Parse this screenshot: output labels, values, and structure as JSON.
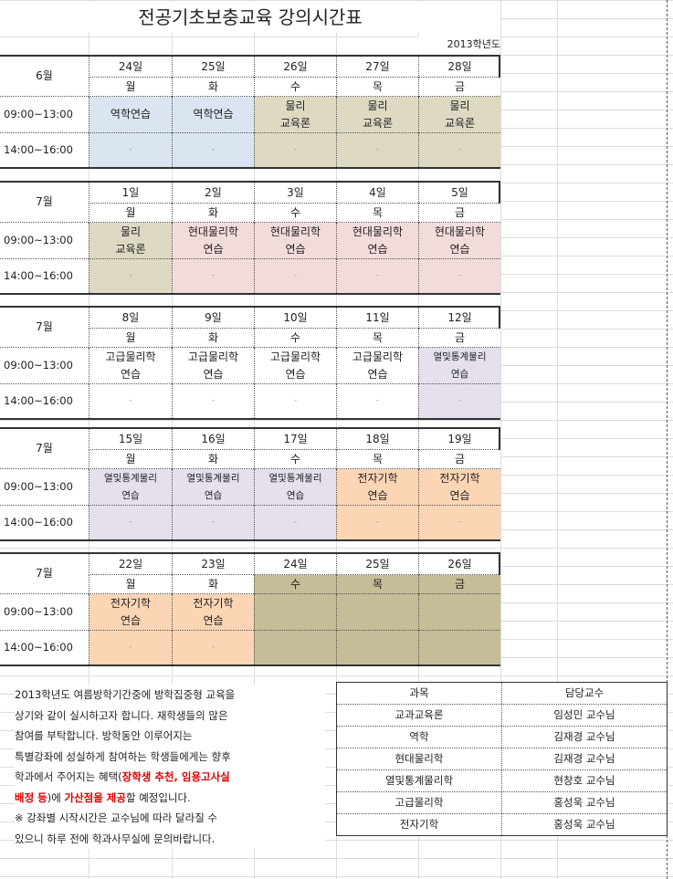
{
  "title": "전공기초보충교육 강의시간표",
  "year": "2013학년도",
  "time_slots": [
    "09:00~13:00",
    "14:00~16:00"
  ],
  "colors": {
    "blue": "#dbe5f1",
    "khaki": "#ddd9c3",
    "pink": "#f2dcdb",
    "lavender": "#e5e0ec",
    "peach": "#fcd5b4",
    "olive": "#c4bd97",
    "white": "#ffffff"
  },
  "blocks": [
    {
      "month": "6월",
      "days": [
        {
          "date": "24일",
          "dow": "월",
          "am": "역학연습",
          "pm": "-",
          "color": "blue"
        },
        {
          "date": "25일",
          "dow": "화",
          "am": "역학연습",
          "pm": "-",
          "color": "blue"
        },
        {
          "date": "26일",
          "dow": "수",
          "am": "물리\n교육론",
          "pm": "-",
          "color": "khaki"
        },
        {
          "date": "27일",
          "dow": "목",
          "am": "물리\n교육론",
          "pm": "-",
          "color": "khaki"
        },
        {
          "date": "28일",
          "dow": "금",
          "am": "물리\n교육론",
          "pm": "-",
          "color": "khaki"
        }
      ]
    },
    {
      "month": "7월",
      "days": [
        {
          "date": "1일",
          "dow": "월",
          "am": "물리\n교육론",
          "pm": "-",
          "color": "khaki"
        },
        {
          "date": "2일",
          "dow": "화",
          "am": "현대물리학\n연습",
          "pm": "-",
          "color": "pink"
        },
        {
          "date": "3일",
          "dow": "수",
          "am": "현대물리학\n연습",
          "pm": "-",
          "color": "pink"
        },
        {
          "date": "4일",
          "dow": "목",
          "am": "현대물리학\n연습",
          "pm": "-",
          "color": "pink"
        },
        {
          "date": "5일",
          "dow": "금",
          "am": "현대물리학\n연습",
          "pm": "-",
          "color": "pink"
        }
      ]
    },
    {
      "month": "7월",
      "days": [
        {
          "date": "8일",
          "dow": "월",
          "am": "고급물리학\n연습",
          "pm": "-",
          "color": "white"
        },
        {
          "date": "9일",
          "dow": "화",
          "am": "고급물리학\n연습",
          "pm": "-",
          "color": "white"
        },
        {
          "date": "10일",
          "dow": "수",
          "am": "고급물리학\n연습",
          "pm": "-",
          "color": "white"
        },
        {
          "date": "11일",
          "dow": "목",
          "am": "고급물리학\n연습",
          "pm": "-",
          "color": "white"
        },
        {
          "date": "12일",
          "dow": "금",
          "am": "열및통계물리\n연습",
          "pm": "-",
          "color": "lavender"
        }
      ]
    },
    {
      "month": "7월",
      "days": [
        {
          "date": "15일",
          "dow": "월",
          "am": "열및통계물리\n연습",
          "pm": "-",
          "color": "lavender"
        },
        {
          "date": "16일",
          "dow": "화",
          "am": "열및통계물리\n연습",
          "pm": "-",
          "color": "lavender"
        },
        {
          "date": "17일",
          "dow": "수",
          "am": "열및통계물리\n연습",
          "pm": "-",
          "color": "lavender"
        },
        {
          "date": "18일",
          "dow": "목",
          "am": "전자기학\n연습",
          "pm": "-",
          "color": "peach"
        },
        {
          "date": "19일",
          "dow": "금",
          "am": "전자기학\n연습",
          "pm": "-",
          "color": "peach"
        }
      ]
    },
    {
      "month": "7월",
      "days": [
        {
          "date": "22일",
          "dow": "월",
          "am": "전자기학\n연습",
          "pm": "-",
          "color": "peach"
        },
        {
          "date": "23일",
          "dow": "화",
          "am": "전자기학\n연습",
          "pm": "-",
          "color": "peach"
        },
        {
          "date": "24일",
          "dow": "수",
          "am": "",
          "pm": "",
          "color": "olive",
          "dow_shaded": true
        },
        {
          "date": "25일",
          "dow": "목",
          "am": "",
          "pm": "",
          "color": "olive",
          "dow_shaded": true
        },
        {
          "date": "26일",
          "dow": "금",
          "am": "",
          "pm": "",
          "color": "olive",
          "dow_shaded": true
        }
      ]
    }
  ],
  "notes": [
    [
      {
        "t": "2013학년도 여름방학기간중에 방학집중형 교육을"
      }
    ],
    [
      {
        "t": "상기와 같이 실시하고자 합니다. 재학생들의 많은"
      }
    ],
    [
      {
        "t": "참여를 부탁합니다. 방학동안 이루어지는"
      }
    ],
    [
      {
        "t": "특별강좌에 성실하게 참여하는 학생들에게는 향후"
      }
    ],
    [
      {
        "t": "학과에서 주어지는 혜택("
      },
      {
        "t": "장학생 추천, 임용고사실",
        "red": true
      }
    ],
    [
      {
        "t": "배정 등",
        "red": true
      },
      {
        "t": ")에 "
      },
      {
        "t": "가산점을 제공",
        "red": true
      },
      {
        "t": "할 예정입니다."
      }
    ],
    [
      {
        "t": "※ 강좌별 시작시간은 교수님에 따라 달라질 수"
      }
    ],
    [
      {
        "t": "있으니 하루 전에 학과사무실에 문의바랍니다."
      }
    ]
  ],
  "professors": {
    "headers": [
      "과목",
      "담당교수"
    ],
    "rows": [
      [
        "교과교육론",
        "임성민 교수님"
      ],
      [
        "역학",
        "김재경 교수님"
      ],
      [
        "현대물리학",
        "김재경 교수님"
      ],
      [
        "열및통계물리학",
        "현창호 교수님"
      ],
      [
        "고급물리학",
        "홍성욱 교수님"
      ],
      [
        "전자기학",
        "홍성욱 교수님"
      ]
    ]
  }
}
